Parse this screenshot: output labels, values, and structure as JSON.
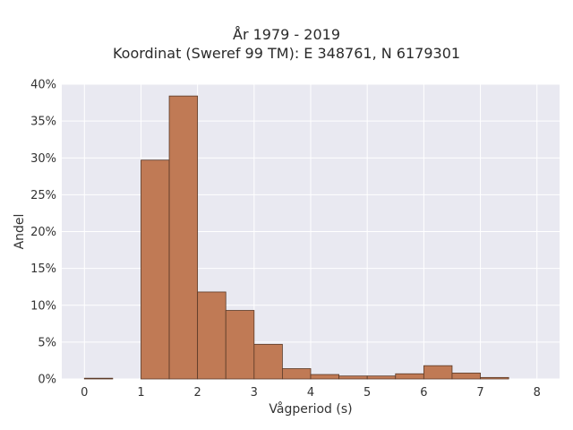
{
  "chart_data": {
    "type": "bar",
    "title": "År 1979 - 2019",
    "subtitle": "Koordinat (Sweref 99 TM): E 348761, N 6179301",
    "xlabel": "Vågperiod (s)",
    "ylabel": "Andel",
    "bin_width": 0.5,
    "bins": [
      {
        "start": 0.0,
        "value": 0.1
      },
      {
        "start": 1.0,
        "value": 29.7
      },
      {
        "start": 1.5,
        "value": 38.4
      },
      {
        "start": 2.0,
        "value": 11.8
      },
      {
        "start": 2.5,
        "value": 9.3
      },
      {
        "start": 3.0,
        "value": 4.7
      },
      {
        "start": 3.5,
        "value": 1.4
      },
      {
        "start": 4.0,
        "value": 0.6
      },
      {
        "start": 4.5,
        "value": 0.4
      },
      {
        "start": 5.0,
        "value": 0.4
      },
      {
        "start": 5.5,
        "value": 0.7
      },
      {
        "start": 6.0,
        "value": 1.8
      },
      {
        "start": 6.5,
        "value": 0.8
      },
      {
        "start": 7.0,
        "value": 0.2
      }
    ],
    "xlim": [
      -0.4,
      8.4
    ],
    "ylim": [
      0,
      40
    ],
    "xticks": [
      0,
      1,
      2,
      3,
      4,
      5,
      6,
      7,
      8
    ],
    "yticks": [
      0,
      5,
      10,
      15,
      20,
      25,
      30,
      35,
      40
    ],
    "ytick_labels": [
      "0%",
      "5%",
      "10%",
      "15%",
      "20%",
      "25%",
      "30%",
      "35%",
      "40%"
    ],
    "grid": true,
    "colors": {
      "bar_fill": "#c07a55",
      "bar_edge": "#5a3a28",
      "plot_bg": "#e9e9f1",
      "grid": "#ffffff"
    }
  }
}
